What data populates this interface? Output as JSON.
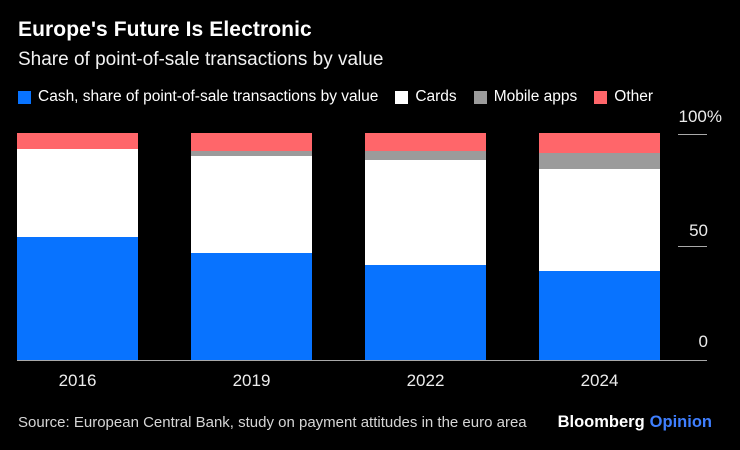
{
  "header": {
    "title": "Europe's Future Is Electronic",
    "subtitle": "Share of point-of-sale transactions by value"
  },
  "chart_data": {
    "type": "bar",
    "stacked": true,
    "categories": [
      "2016",
      "2019",
      "2022",
      "2024"
    ],
    "series": [
      {
        "key": "cash",
        "name": "Cash, share of point-of-sale transactions by value",
        "color": "#0873ff",
        "values": [
          54,
          47,
          42,
          39
        ]
      },
      {
        "key": "cards",
        "name": "Cards",
        "color": "#ffffff",
        "values": [
          39,
          43,
          46,
          45
        ]
      },
      {
        "key": "mobile-apps",
        "name": "Mobile apps",
        "color": "#9b9b9b",
        "values": [
          0,
          2,
          4,
          7
        ]
      },
      {
        "key": "other",
        "name": "Other",
        "color": "#ff666a",
        "values": [
          7,
          8,
          8,
          9
        ]
      }
    ],
    "xlabel": "",
    "ylabel": "",
    "ylim": [
      0,
      100
    ],
    "yticks": [
      {
        "value": 100,
        "label": "100%"
      },
      {
        "value": 50,
        "label": "50"
      },
      {
        "value": 0,
        "label": "0"
      }
    ],
    "legend_position": "top",
    "grid": false,
    "background": "#000000"
  },
  "footer": {
    "source": "Source: European Central Bank, study on payment attitudes in the euro area",
    "brand": "Bloomberg",
    "section": "Opinion",
    "section_color": "#3f7fff"
  }
}
